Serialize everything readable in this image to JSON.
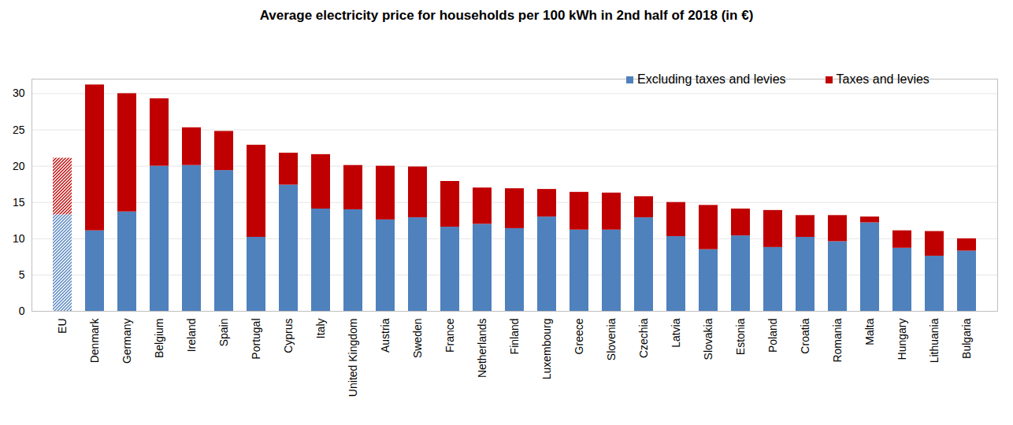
{
  "chart_data": {
    "type": "bar",
    "title": "Average electricity price for households per 100 kWh in 2nd half of 2018 (in €)",
    "categories": [
      "EU",
      "Denmark",
      "Germany",
      "Belgium",
      "Ireland",
      "Spain",
      "Portugal",
      "Cyprus",
      "Italy",
      "United Kingdom",
      "Austria",
      "Sweden",
      "France",
      "Netherlands",
      "Finland",
      "Luxembourg",
      "Greece",
      "Slovenia",
      "Czechia",
      "Latvia",
      "Slovakia",
      "Estonia",
      "Poland",
      "Croatia",
      "Romania",
      "Malta",
      "Hungary",
      "Lithuania",
      "Bulgaria"
    ],
    "series": [
      {
        "name": "Excluding taxes and levies",
        "color": "#4F81BD",
        "values": [
          13.3,
          11.1,
          13.7,
          20.0,
          20.1,
          19.4,
          10.2,
          17.4,
          14.1,
          14.0,
          12.6,
          12.9,
          11.6,
          12.0,
          11.4,
          13.0,
          11.2,
          11.2,
          12.9,
          10.3,
          8.5,
          10.4,
          8.8,
          10.2,
          9.6,
          12.2,
          8.7,
          7.6,
          8.3
        ]
      },
      {
        "name": "Taxes and levies",
        "color": "#C00000",
        "values": [
          7.8,
          20.1,
          16.3,
          9.3,
          5.2,
          5.4,
          12.7,
          4.4,
          7.5,
          6.1,
          7.4,
          7.0,
          6.3,
          5.0,
          5.5,
          3.8,
          5.2,
          5.1,
          2.9,
          4.7,
          6.1,
          3.7,
          5.1,
          3.0,
          3.6,
          0.8,
          2.4,
          3.4,
          1.7
        ]
      }
    ],
    "ylim": [
      0,
      32
    ],
    "yticks": [
      0,
      5,
      10,
      15,
      20,
      25,
      30
    ],
    "stacked": true,
    "grid": true,
    "legend": "upper right"
  }
}
